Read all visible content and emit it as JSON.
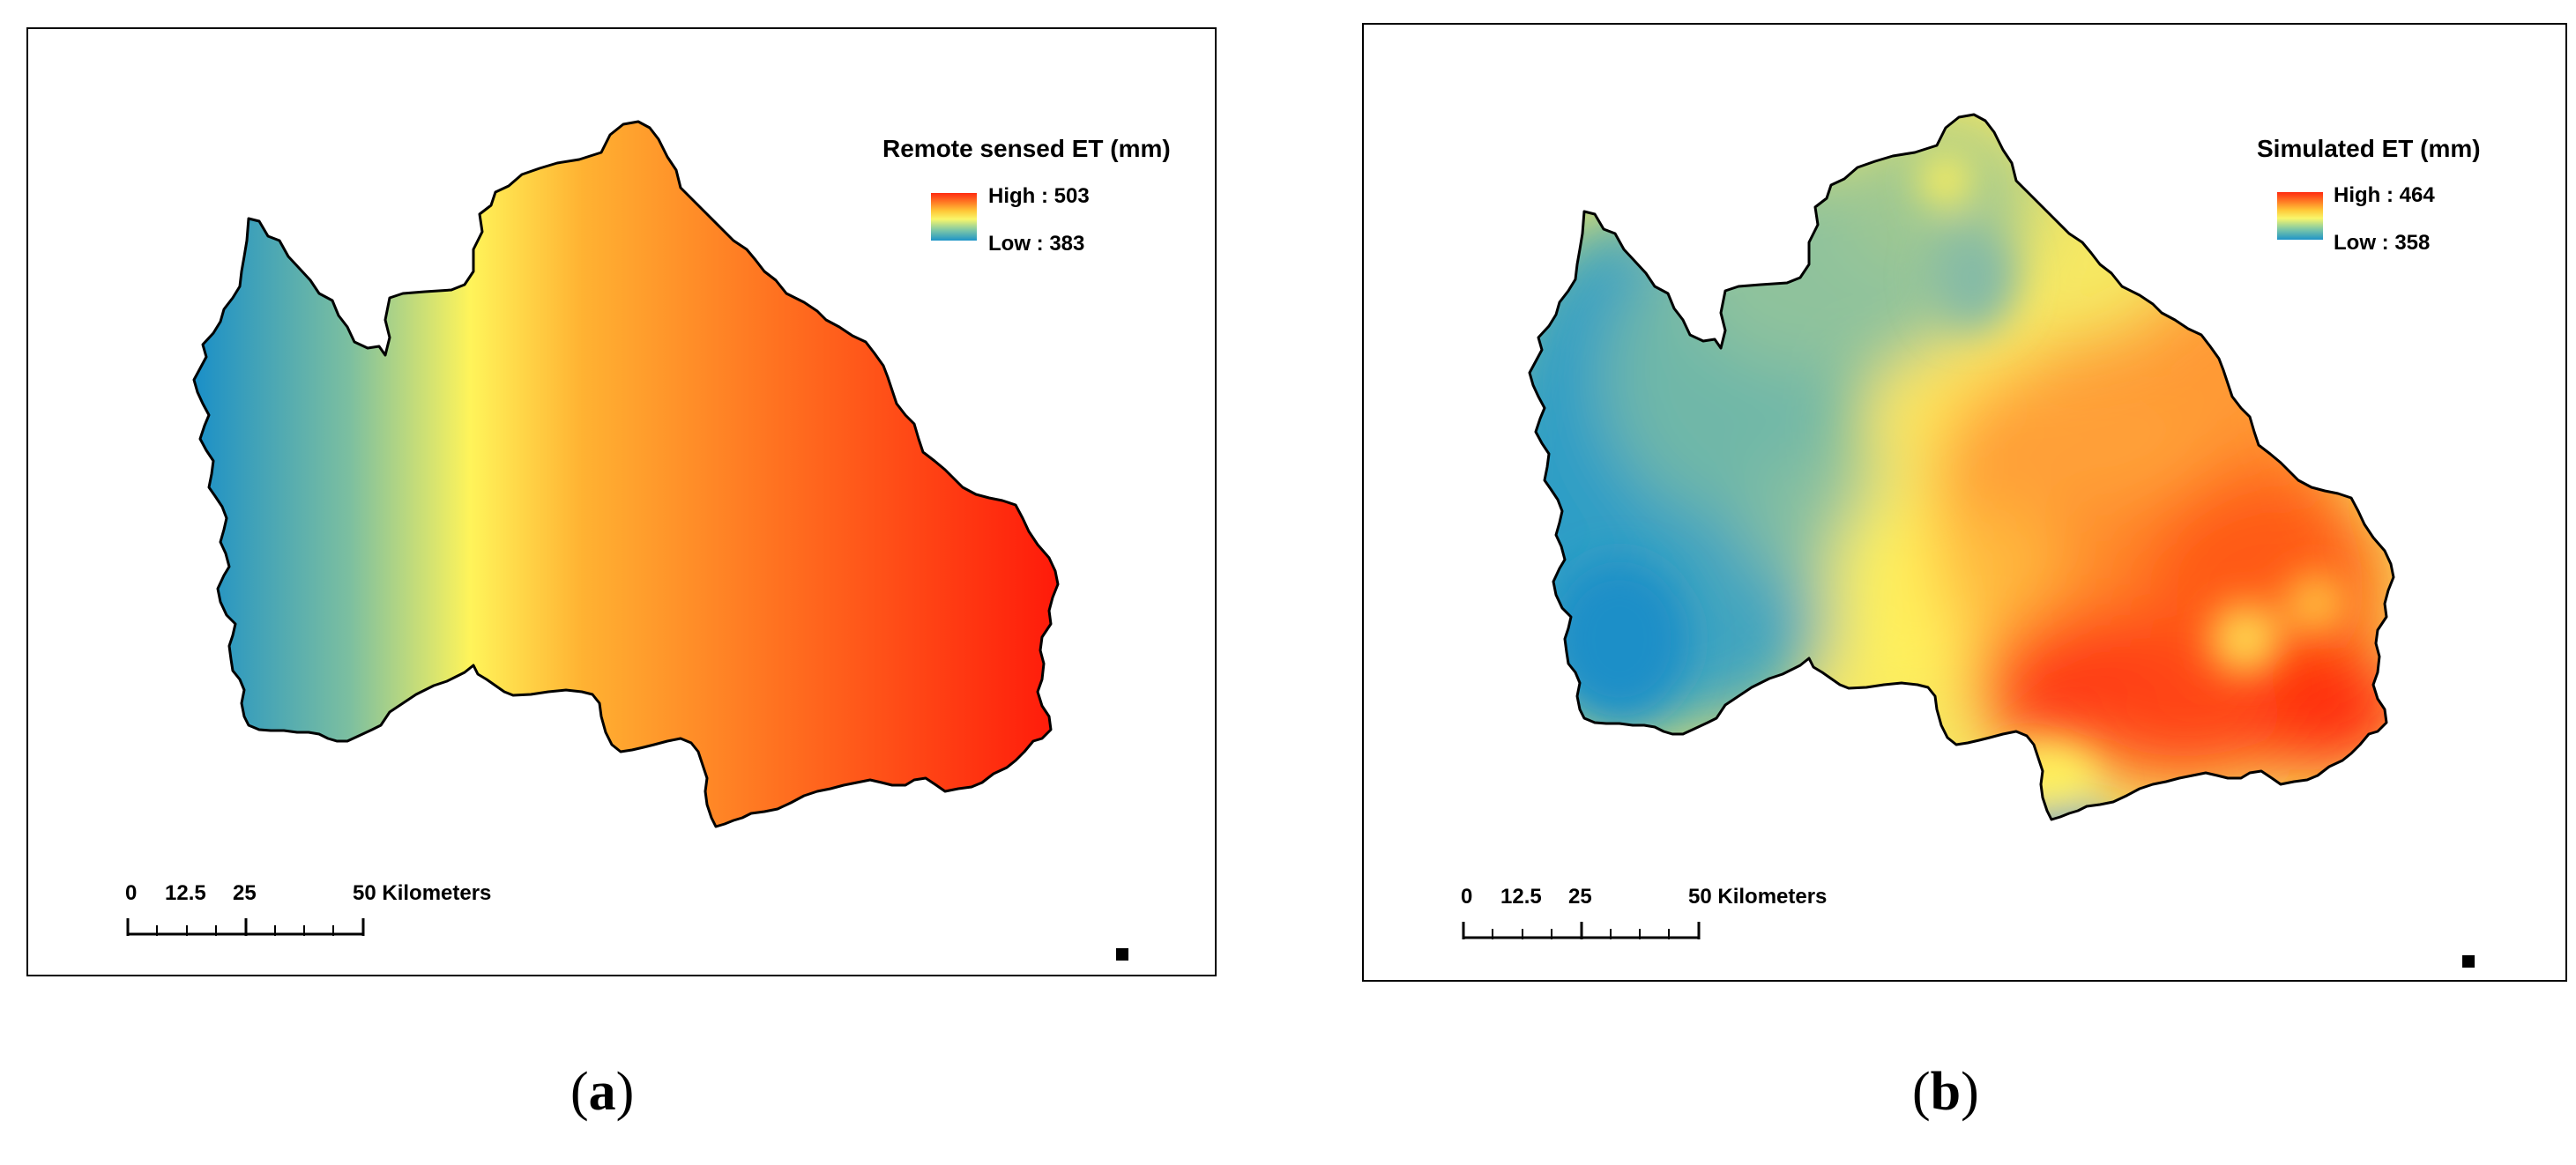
{
  "panels": [
    {
      "legend_title": "Remote sensed ET (mm)",
      "high_label": "High : 503",
      "low_label": "Low :  383",
      "scale": {
        "t0": "0",
        "t1": "12.5",
        "t2": "25",
        "t3": "50 Kilometers"
      },
      "caption_open": "(",
      "caption_letter": "a",
      "caption_close": ")"
    },
    {
      "legend_title": "Simulated ET (mm)",
      "high_label": "High : 464",
      "low_label": "Low :  358",
      "scale": {
        "t0": "0",
        "t1": "12.5",
        "t2": "25",
        "t3": "50 Kilometers"
      },
      "caption_open": "(",
      "caption_letter": "b",
      "caption_close": ")"
    }
  ],
  "colors": {
    "high": "#ff1a0a",
    "mid": "#fff45a",
    "low": "#1a8fc8",
    "outline": "#000000"
  }
}
